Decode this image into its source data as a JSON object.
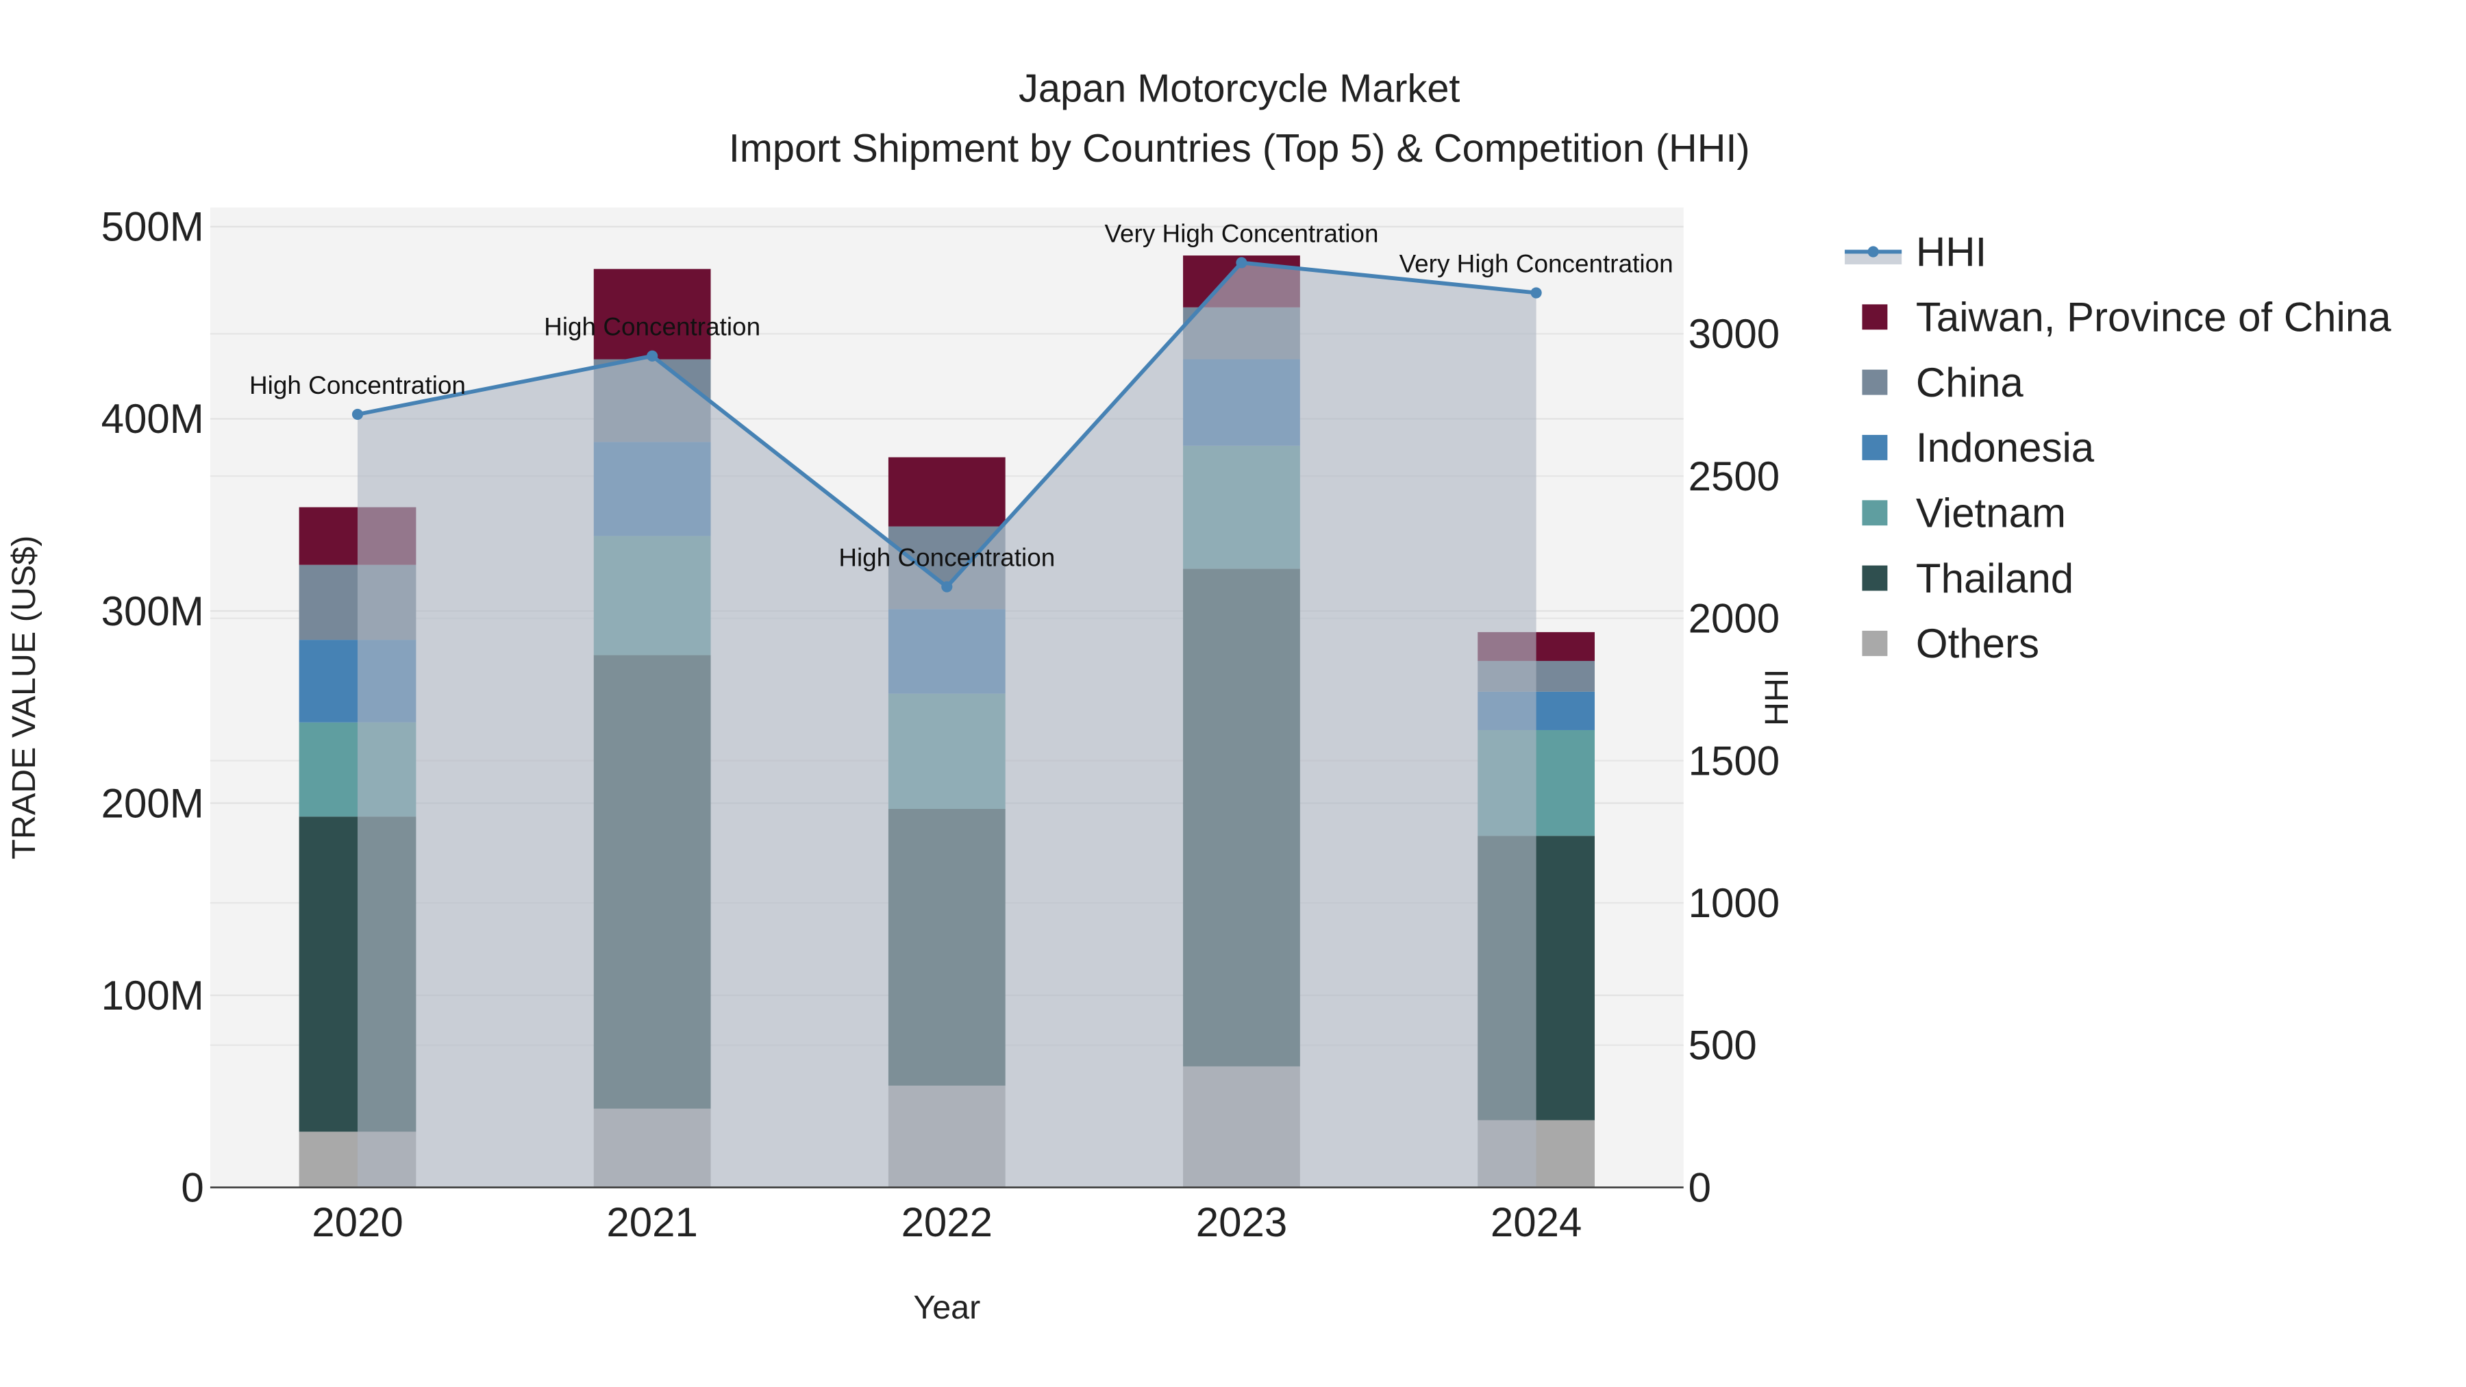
{
  "chart_data": {
    "type": "bar",
    "stacked": true,
    "title": "Japan Motorcycle Market",
    "subtitle": "Import Shipment by Countries (Top 5) & Competition (HHI)",
    "xlabel": "Year",
    "ylabel": "TRADE VALUE (US$)",
    "y2label": "HHI",
    "categories": [
      "2020",
      "2021",
      "2022",
      "2023",
      "2024"
    ],
    "ylim": [
      0,
      510000000
    ],
    "y_ticks": [
      0,
      100000000,
      200000000,
      300000000,
      400000000,
      500000000
    ],
    "y_tick_labels": [
      "0",
      "100M",
      "200M",
      "300M",
      "400M",
      "500M"
    ],
    "y2lim": [
      0,
      3444
    ],
    "y2_ticks": [
      0,
      500,
      1000,
      1500,
      2000,
      2500,
      3000
    ],
    "y2_tick_labels": [
      "0",
      "500",
      "1000",
      "1500",
      "2000",
      "2500",
      "3000"
    ],
    "grid": true,
    "legend_placement": "right",
    "series": [
      {
        "name": "Others",
        "color": "#a9a9a9",
        "values": [
          29000000,
          41000000,
          53000000,
          63000000,
          35000000
        ]
      },
      {
        "name": "Thailand",
        "color": "#2f4f4f",
        "values": [
          164000000,
          236000000,
          144000000,
          259000000,
          148000000
        ]
      },
      {
        "name": "Vietnam",
        "color": "#5f9ea0",
        "values": [
          49000000,
          62000000,
          60000000,
          64000000,
          55000000
        ]
      },
      {
        "name": "Indonesia",
        "color": "#4682b4",
        "values": [
          43000000,
          49000000,
          44000000,
          45000000,
          20000000
        ]
      },
      {
        "name": "China",
        "color": "#778899",
        "values": [
          39000000,
          43000000,
          43000000,
          27000000,
          16000000
        ]
      },
      {
        "name": "Taiwan, Province of China",
        "color": "#6b1033",
        "values": [
          30000000,
          47000000,
          36000000,
          27000000,
          15000000
        ]
      }
    ],
    "line": {
      "name": "HHI",
      "color": "#4682b4",
      "axis": "y2",
      "values": [
        2717,
        2922,
        2111,
        3250,
        3144
      ],
      "annotations": [
        "High Concentration",
        "High Concentration",
        "High Concentration",
        "Very High Concentration",
        "Very High Concentration"
      ]
    },
    "legend_order": [
      "HHI",
      "Taiwan, Province of China",
      "China",
      "Indonesia",
      "Vietnam",
      "Thailand",
      "Others"
    ]
  }
}
